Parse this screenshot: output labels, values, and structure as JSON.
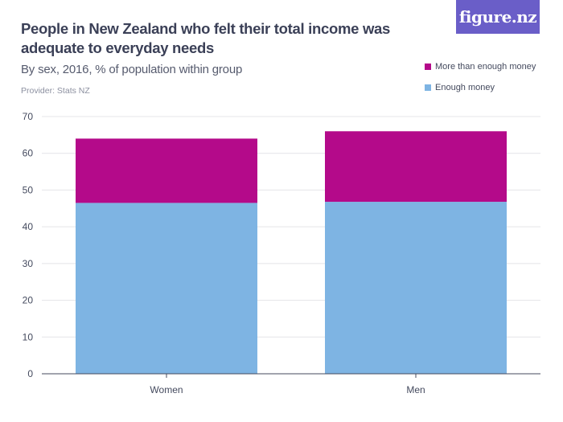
{
  "logo": {
    "text": "figure.nz"
  },
  "header": {
    "title": "People in New Zealand who felt their total income was adequate to everyday needs",
    "subtitle": "By sex, 2016, % of population within group",
    "provider": "Provider: Stats NZ"
  },
  "colors": {
    "more": "#b40a8a",
    "enough": "#7eb4e3",
    "grid": "#e4e4e8",
    "axis": "#444a5e"
  },
  "chart_data": {
    "type": "bar",
    "stacked": true,
    "categories": [
      "Women",
      "Men"
    ],
    "series": [
      {
        "name": "Enough money",
        "values": [
          46.5,
          46.8
        ]
      },
      {
        "name": "More than enough money",
        "values": [
          17.5,
          19.2
        ]
      }
    ],
    "ylim": [
      0,
      70
    ],
    "yticks": [
      0,
      10,
      20,
      30,
      40,
      50,
      60,
      70
    ],
    "grid": true,
    "legend_position": "top-right"
  }
}
